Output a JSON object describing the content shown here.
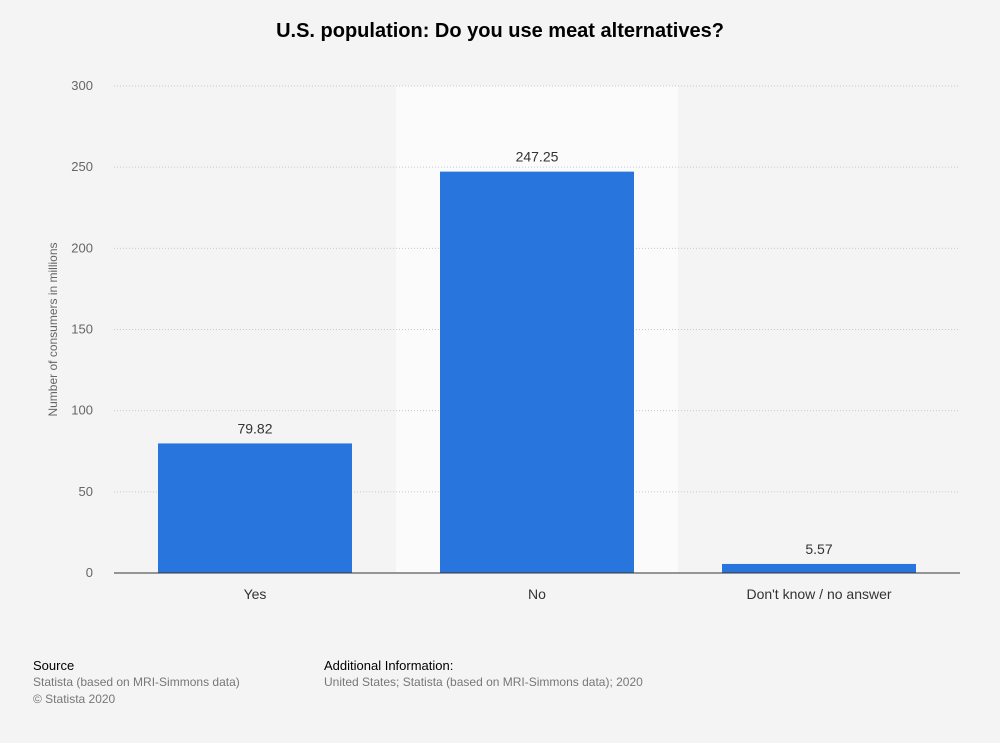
{
  "chart_data": {
    "type": "bar",
    "title": "U.S. population: Do you use meat alternatives?",
    "ylabel": "Number of consumers in millions",
    "xlabel": "",
    "categories": [
      "Yes",
      "No",
      "Don't know / no answer"
    ],
    "values": [
      79.82,
      247.25,
      5.57
    ],
    "value_labels": [
      "79.82",
      "247.25",
      "5.57"
    ],
    "ylim": [
      0,
      300
    ],
    "yticks": [
      0,
      50,
      100,
      150,
      200,
      250,
      300
    ],
    "grid": true,
    "highlight_category": "No",
    "bar_color": "#2876dd",
    "highlight_bg": "#fbfbfb"
  },
  "footer": {
    "source_heading": "Source",
    "source_line1": "Statista (based on MRI-Simmons data)",
    "source_line2": "© Statista 2020",
    "info_heading": "Additional Information:",
    "info_line1": "United States; Statista (based on MRI-Simmons data); 2020"
  }
}
